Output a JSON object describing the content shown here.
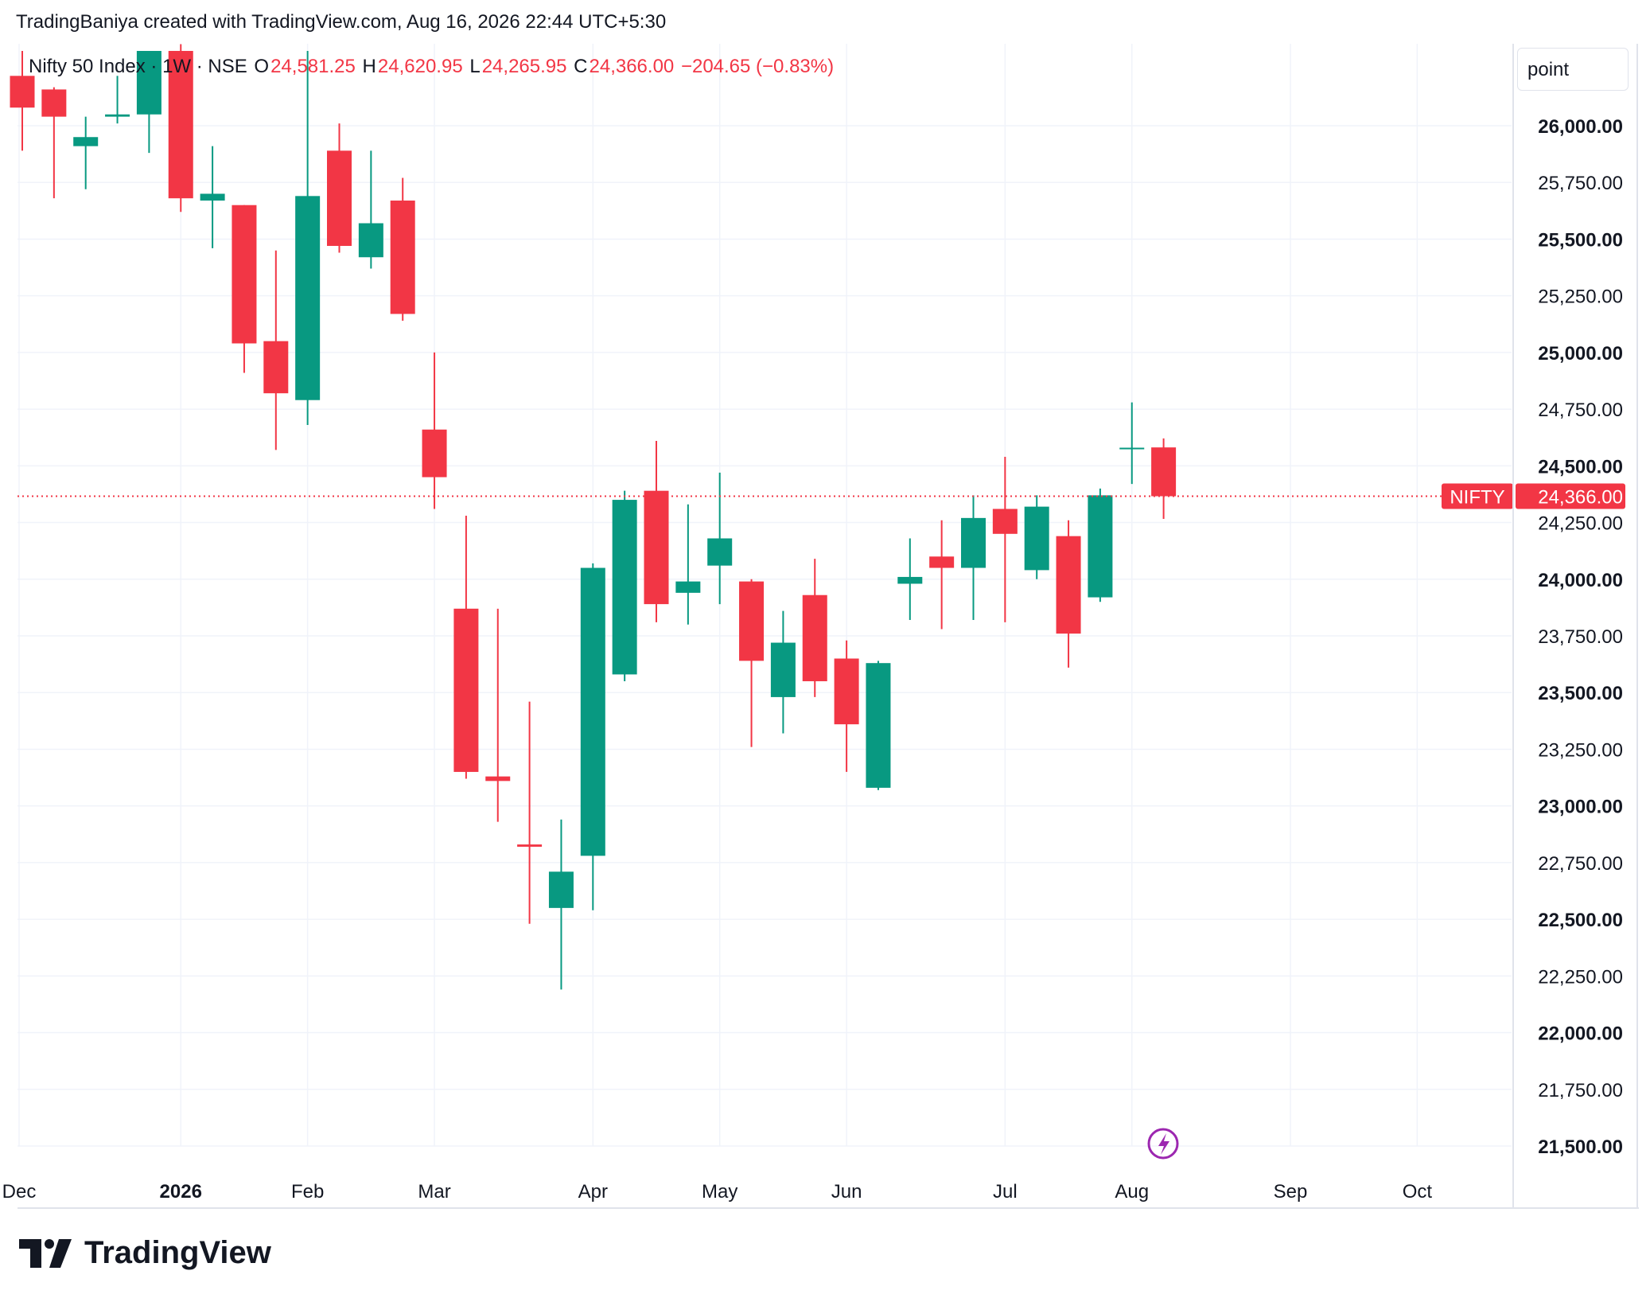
{
  "header": {
    "attribution": "TradingBaniya created with TradingView.com, Aug 16, 2026 22:44 UTC+5:30"
  },
  "legend": {
    "symbol": "Nifty 50 Index · 1W · NSE",
    "o_label": "O",
    "o_value": "24,581.25",
    "h_label": "H",
    "h_value": "24,620.95",
    "l_label": "L",
    "l_value": "24,265.95",
    "c_label": "C",
    "c_value": "24,366.00",
    "change": "−204.65 (−0.83%)"
  },
  "unit_button": "point",
  "price_tag": {
    "symbol": "NIFTY",
    "value": "24,366.00"
  },
  "footer": {
    "brand": "TradingView"
  },
  "colors": {
    "up": "#089981",
    "down": "#f23645",
    "grid": "#f0f3fa",
    "text": "#131722"
  },
  "chart_data": {
    "type": "candlestick",
    "title": "Nifty 50 Index · 1W · NSE",
    "ylim": [
      21450,
      26350
    ],
    "yticks": [
      {
        "value": 26000,
        "label": "26,000.00",
        "bold": true
      },
      {
        "value": 25750,
        "label": "25,750.00",
        "bold": false
      },
      {
        "value": 25500,
        "label": "25,500.00",
        "bold": true
      },
      {
        "value": 25250,
        "label": "25,250.00",
        "bold": false
      },
      {
        "value": 25000,
        "label": "25,000.00",
        "bold": true
      },
      {
        "value": 24750,
        "label": "24,750.00",
        "bold": false
      },
      {
        "value": 24500,
        "label": "24,500.00",
        "bold": true
      },
      {
        "value": 24250,
        "label": "24,250.00",
        "bold": false
      },
      {
        "value": 24000,
        "label": "24,000.00",
        "bold": true
      },
      {
        "value": 23750,
        "label": "23,750.00",
        "bold": false
      },
      {
        "value": 23500,
        "label": "23,500.00",
        "bold": true
      },
      {
        "value": 23250,
        "label": "23,250.00",
        "bold": false
      },
      {
        "value": 23000,
        "label": "23,000.00",
        "bold": true
      },
      {
        "value": 22750,
        "label": "22,750.00",
        "bold": false
      },
      {
        "value": 22500,
        "label": "22,500.00",
        "bold": true
      },
      {
        "value": 22250,
        "label": "22,250.00",
        "bold": false
      },
      {
        "value": 22000,
        "label": "22,000.00",
        "bold": true
      },
      {
        "value": 21750,
        "label": "21,750.00",
        "bold": false
      },
      {
        "value": 21500,
        "label": "21,500.00",
        "bold": true
      }
    ],
    "xticks": [
      {
        "index": -0.1,
        "label": "Dec",
        "bold": false
      },
      {
        "index": 5,
        "label": "2026",
        "bold": true
      },
      {
        "index": 9,
        "label": "Feb",
        "bold": false
      },
      {
        "index": 13,
        "label": "Mar",
        "bold": false
      },
      {
        "index": 18,
        "label": "Apr",
        "bold": false
      },
      {
        "index": 22,
        "label": "May",
        "bold": false
      },
      {
        "index": 26,
        "label": "Jun",
        "bold": false
      },
      {
        "index": 31,
        "label": "Jul",
        "bold": false
      },
      {
        "index": 35,
        "label": "Aug",
        "bold": false
      },
      {
        "index": 40,
        "label": "Sep",
        "bold": false
      },
      {
        "index": 44,
        "label": "Oct",
        "bold": false
      }
    ],
    "last_close": 24366,
    "candles": [
      {
        "o": 26220,
        "h": 26330,
        "l": 25890,
        "c": 26080
      },
      {
        "o": 26160,
        "h": 26170,
        "l": 25680,
        "c": 26040
      },
      {
        "o": 25910,
        "h": 26040,
        "l": 25720,
        "c": 25950
      },
      {
        "o": 26040,
        "h": 26220,
        "l": 26010,
        "c": 26050
      },
      {
        "o": 26050,
        "h": 26330,
        "l": 25880,
        "c": 26330
      },
      {
        "o": 26330,
        "h": 26360,
        "l": 25620,
        "c": 25680
      },
      {
        "o": 25670,
        "h": 25910,
        "l": 25460,
        "c": 25700
      },
      {
        "o": 25650,
        "h": 25650,
        "l": 24910,
        "c": 25040
      },
      {
        "o": 25050,
        "h": 25450,
        "l": 24570,
        "c": 24820
      },
      {
        "o": 24790,
        "h": 26330,
        "l": 24680,
        "c": 25690
      },
      {
        "o": 25890,
        "h": 26010,
        "l": 25440,
        "c": 25470
      },
      {
        "o": 25420,
        "h": 25890,
        "l": 25370,
        "c": 25570
      },
      {
        "o": 25670,
        "h": 25770,
        "l": 25140,
        "c": 25170
      },
      {
        "o": 24660,
        "h": 25000,
        "l": 24310,
        "c": 24450
      },
      {
        "o": 23870,
        "h": 24280,
        "l": 23120,
        "c": 23150
      },
      {
        "o": 23130,
        "h": 23870,
        "l": 22930,
        "c": 23110
      },
      {
        "o": 22830,
        "h": 23460,
        "l": 22480,
        "c": 22820
      },
      {
        "o": 22550,
        "h": 22940,
        "l": 22190,
        "c": 22710
      },
      {
        "o": 22780,
        "h": 24070,
        "l": 22540,
        "c": 24050
      },
      {
        "o": 23580,
        "h": 24390,
        "l": 23550,
        "c": 24350
      },
      {
        "o": 24390,
        "h": 24610,
        "l": 23810,
        "c": 23890
      },
      {
        "o": 23940,
        "h": 24330,
        "l": 23800,
        "c": 23990
      },
      {
        "o": 24060,
        "h": 24470,
        "l": 23890,
        "c": 24180
      },
      {
        "o": 23990,
        "h": 24000,
        "l": 23260,
        "c": 23640
      },
      {
        "o": 23480,
        "h": 23860,
        "l": 23320,
        "c": 23720
      },
      {
        "o": 23930,
        "h": 24090,
        "l": 23480,
        "c": 23550
      },
      {
        "o": 23650,
        "h": 23730,
        "l": 23150,
        "c": 23360
      },
      {
        "o": 23080,
        "h": 23640,
        "l": 23070,
        "c": 23630
      },
      {
        "o": 23980,
        "h": 24180,
        "l": 23820,
        "c": 24010
      },
      {
        "o": 24100,
        "h": 24260,
        "l": 23780,
        "c": 24050
      },
      {
        "o": 24050,
        "h": 24370,
        "l": 23820,
        "c": 24270
      },
      {
        "o": 24310,
        "h": 24540,
        "l": 23810,
        "c": 24200
      },
      {
        "o": 24040,
        "h": 24370,
        "l": 24000,
        "c": 24320
      },
      {
        "o": 24190,
        "h": 24260,
        "l": 23610,
        "c": 23760
      },
      {
        "o": 23920,
        "h": 24400,
        "l": 23900,
        "c": 24370
      },
      {
        "o": 24580,
        "h": 24780,
        "l": 24420,
        "c": 24580
      },
      {
        "o": 24581.25,
        "h": 24620.95,
        "l": 24265.95,
        "c": 24366
      }
    ]
  }
}
